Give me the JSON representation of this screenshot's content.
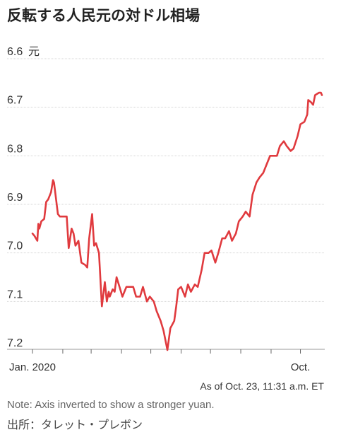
{
  "chart_data": {
    "type": "line",
    "title": "反転する人民元の対ドル相場",
    "unit_label": "元",
    "yticks": [
      "6.6",
      "6.7",
      "6.8",
      "6.9",
      "7.0",
      "7.1",
      "7.2"
    ],
    "ylim": [
      6.6,
      7.2
    ],
    "y_inverted": true,
    "xtick_labels": [
      "Jan. 2020",
      "Oct."
    ],
    "x_range": [
      "2020-01-01",
      "2020-10-23"
    ],
    "grid": true,
    "line_color": "#e03a3e",
    "series": [
      {
        "x": [
          "2020-01-01",
          "2020-01-03",
          "2020-01-06",
          "2020-01-07",
          "2020-01-08",
          "2020-01-10",
          "2020-01-13",
          "2020-01-15",
          "2020-01-17",
          "2020-01-20",
          "2020-01-22",
          "2020-01-23",
          "2020-01-27",
          "2020-01-29",
          "2020-02-03",
          "2020-02-05",
          "2020-02-07",
          "2020-02-10",
          "2020-02-12",
          "2020-02-14",
          "2020-02-17",
          "2020-02-20",
          "2020-02-24",
          "2020-02-26",
          "2020-02-28",
          "2020-03-02",
          "2020-03-04",
          "2020-03-06",
          "2020-03-09",
          "2020-03-12",
          "2020-03-15",
          "2020-03-17",
          "2020-03-19",
          "2020-03-20",
          "2020-03-23",
          "2020-03-25",
          "2020-03-27",
          "2020-03-30",
          "2020-04-02",
          "2020-04-06",
          "2020-04-09",
          "2020-04-13",
          "2020-04-16",
          "2020-04-20",
          "2020-04-23",
          "2020-04-27",
          "2020-04-30",
          "2020-05-04",
          "2020-05-07",
          "2020-05-11",
          "2020-05-14",
          "2020-05-18",
          "2020-05-21",
          "2020-05-25",
          "2020-05-27",
          "2020-05-29",
          "2020-06-01",
          "2020-06-03",
          "2020-06-05",
          "2020-06-08",
          "2020-06-11",
          "2020-06-15",
          "2020-06-18",
          "2020-06-22",
          "2020-06-25",
          "2020-06-29",
          "2020-07-02",
          "2020-07-06",
          "2020-07-09",
          "2020-07-13",
          "2020-07-16",
          "2020-07-20",
          "2020-07-23",
          "2020-07-27",
          "2020-07-30",
          "2020-08-03",
          "2020-08-06",
          "2020-08-10",
          "2020-08-13",
          "2020-08-17",
          "2020-08-20",
          "2020-08-24",
          "2020-08-27",
          "2020-08-31",
          "2020-09-03",
          "2020-09-07",
          "2020-09-10",
          "2020-09-14",
          "2020-09-17",
          "2020-09-21",
          "2020-09-24",
          "2020-09-28",
          "2020-10-01",
          "2020-10-05",
          "2020-10-08",
          "2020-10-09",
          "2020-10-12",
          "2020-10-14",
          "2020-10-16",
          "2020-10-20",
          "2020-10-22",
          "2020-10-23"
        ],
        "y": [
          6.96,
          6.965,
          6.975,
          6.94,
          6.95,
          6.935,
          6.93,
          6.895,
          6.89,
          6.875,
          6.85,
          6.855,
          6.92,
          6.925,
          6.925,
          6.925,
          6.99,
          6.95,
          6.96,
          6.985,
          6.975,
          7.02,
          7.025,
          7.03,
          6.97,
          6.92,
          6.985,
          6.98,
          7.0,
          7.11,
          7.06,
          7.1,
          7.08,
          7.09,
          7.075,
          7.08,
          7.05,
          7.07,
          7.09,
          7.07,
          7.07,
          7.07,
          7.09,
          7.09,
          7.07,
          7.1,
          7.09,
          7.1,
          7.12,
          7.14,
          7.16,
          7.2,
          7.155,
          7.14,
          7.11,
          7.075,
          7.07,
          7.08,
          7.09,
          7.065,
          7.08,
          7.065,
          7.07,
          7.035,
          7.0,
          7.0,
          6.995,
          7.02,
          7.0,
          6.97,
          6.97,
          6.955,
          6.975,
          6.96,
          6.935,
          6.925,
          6.915,
          6.925,
          6.88,
          6.855,
          6.845,
          6.835,
          6.82,
          6.8,
          6.8,
          6.8,
          6.78,
          6.77,
          6.78,
          6.79,
          6.785,
          6.76,
          6.735,
          6.73,
          6.715,
          6.685,
          6.69,
          6.695,
          6.675,
          6.67,
          6.67,
          6.675
        ]
      }
    ]
  },
  "footer": {
    "as_of": "As of Oct. 23, 11:31 a.m. ET",
    "note": "Note: Axis inverted to show a stronger yuan.",
    "source": "出所：タレット・プレボン"
  }
}
